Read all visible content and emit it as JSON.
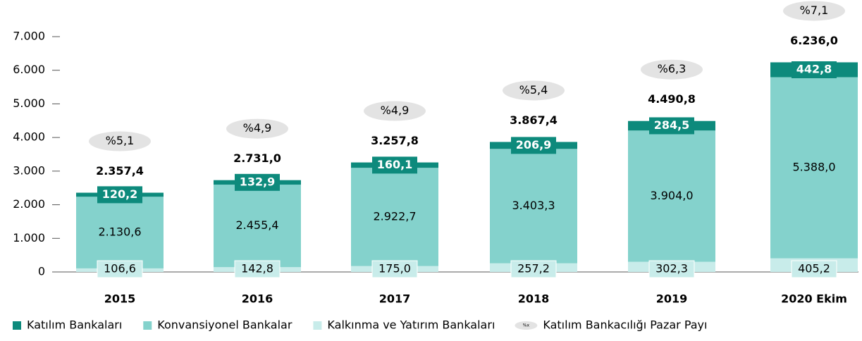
{
  "chart_data": {
    "type": "stacked_bar",
    "categories": [
      "2015",
      "2016",
      "2017",
      "2018",
      "2019",
      "2020 Ekim"
    ],
    "series": [
      {
        "name": "Katılım Bankaları",
        "color": "#0d8a7c",
        "values": [
          120.2,
          132.9,
          160.1,
          206.9,
          284.5,
          442.8
        ],
        "value_labels": [
          "120,2",
          "132,9",
          "160,1",
          "206,9",
          "284,5",
          "442,8"
        ]
      },
      {
        "name": "Konvansiyonel Bankalar",
        "color": "#84d2cc",
        "values": [
          2130.6,
          2455.4,
          2922.7,
          3403.3,
          3904.0,
          5388.0
        ],
        "value_labels": [
          "2.130,6",
          "2.455,4",
          "2.922,7",
          "3.403,3",
          "3.904,0",
          "5.388,0"
        ]
      },
      {
        "name": "Kalkınma ve Yatırım Bankaları",
        "color": "#c8ecea",
        "values": [
          106.6,
          142.8,
          175.0,
          257.2,
          302.3,
          405.2
        ],
        "value_labels": [
          "106,6",
          "142,8",
          "175,0",
          "257,2",
          "302,3",
          "405,2"
        ]
      }
    ],
    "totals": {
      "values": [
        2357.4,
        2731.0,
        3257.8,
        3867.4,
        4490.8,
        6236.0
      ],
      "value_labels": [
        "2.357,4",
        "2.731,0",
        "3.257,8",
        "3.867,4",
        "4.490,8",
        "6.236,0"
      ]
    },
    "market_share": {
      "name": "Katılım Bankacılığı Pazar Payı",
      "legend_icon_text": "%x",
      "color": "#e3e3e3",
      "values": [
        5.1,
        4.9,
        4.9,
        5.4,
        6.3,
        7.1
      ],
      "value_labels": [
        "%5,1",
        "%4,9",
        "%4,9",
        "%5,4",
        "%6,3",
        "%7,1"
      ]
    },
    "ylim": [
      0,
      7000
    ],
    "yticks": [
      0,
      {
        "value": 1000,
        "label": "1.000"
      },
      {
        "value": 2000,
        "label": "2.000"
      },
      {
        "value": 3000,
        "label": "3.000"
      },
      {
        "value": 4000,
        "label": "4.000"
      },
      {
        "value": 5000,
        "label": "5.000"
      },
      {
        "value": 6000,
        "label": "6.000"
      },
      {
        "value": 7000,
        "label": "7.000"
      }
    ],
    "grid": false
  }
}
